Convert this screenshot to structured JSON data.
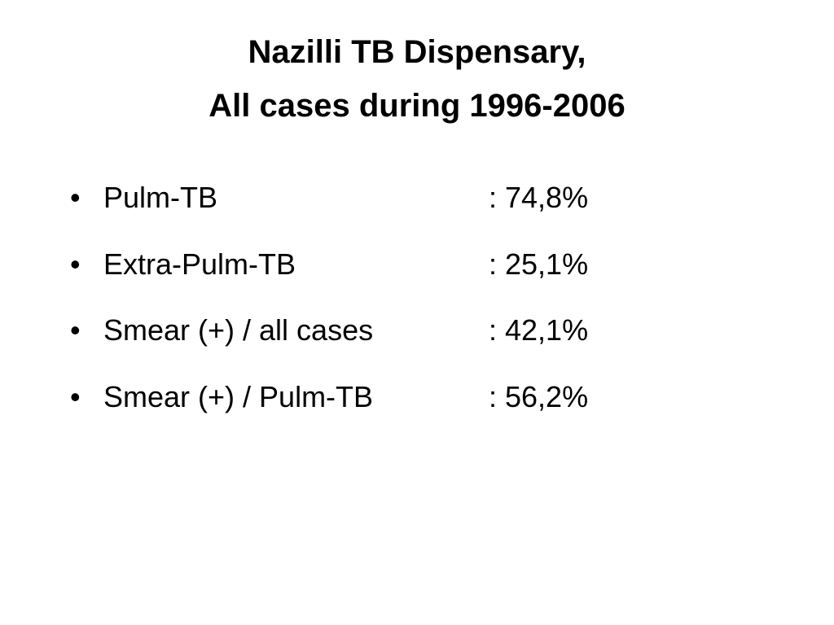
{
  "title": {
    "lines": [
      "Nazilli TB Dispensary,",
      "All cases during 1996-2006"
    ]
  },
  "bullets": [
    {
      "label": "Pulm-TB",
      "value": ": 74,8%"
    },
    {
      "label": "Extra-Pulm-TB",
      "value": ": 25,1%"
    },
    {
      "label": "Smear (+) / all cases",
      "value": ": 42,1%"
    },
    {
      "label": "Smear (+) / Pulm-TB",
      "value": ": 56,2%"
    }
  ]
}
